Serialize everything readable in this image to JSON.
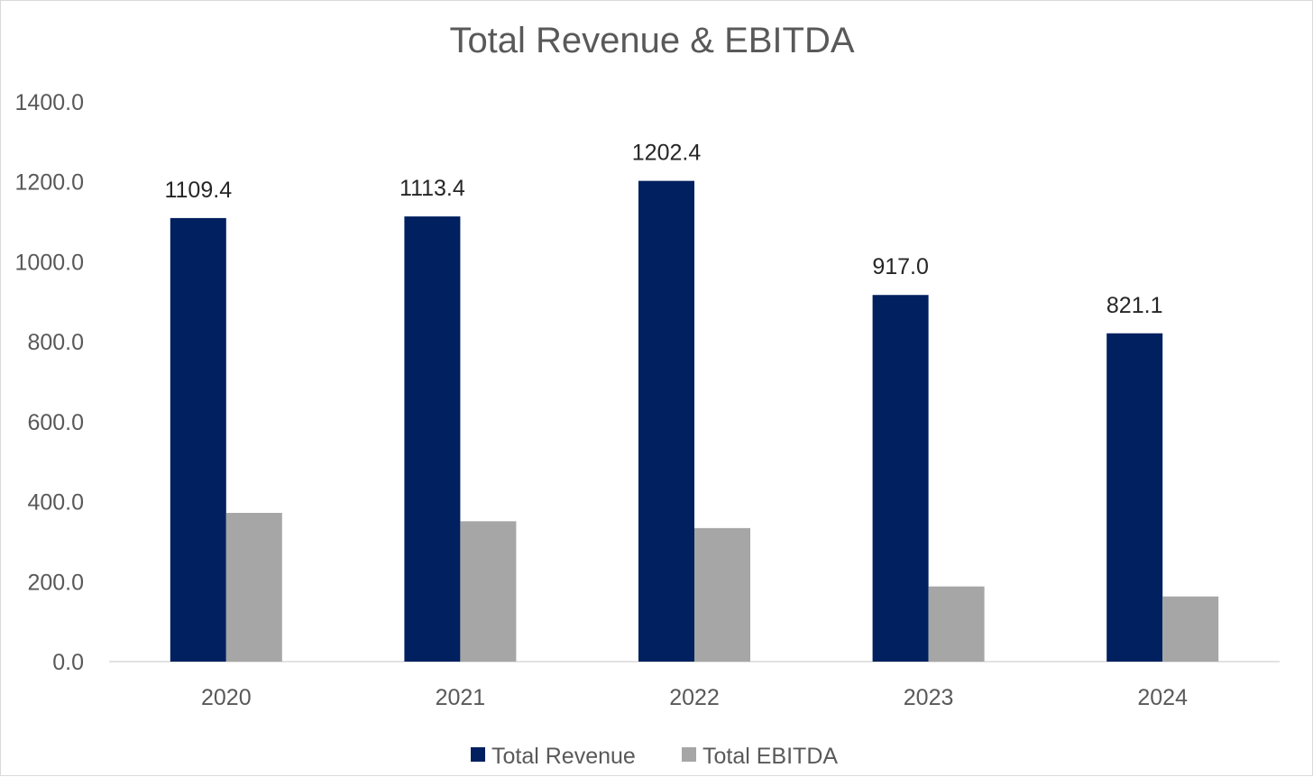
{
  "chart_data": {
    "type": "bar",
    "title": "Total Revenue & EBITDA",
    "categories": [
      "2020",
      "2021",
      "2022",
      "2023",
      "2024"
    ],
    "series": [
      {
        "name": "Total Revenue",
        "color": "#002060",
        "values": [
          1109.4,
          1113.4,
          1202.4,
          917.0,
          821.1
        ],
        "labels": [
          "1109.4",
          "1113.4",
          "1202.4",
          "917.0",
          "821.1"
        ],
        "show_labels": true
      },
      {
        "name": "Total EBITDA",
        "color": "#a6a6a6",
        "values": [
          372,
          351,
          334,
          188,
          163
        ],
        "show_labels": false
      }
    ],
    "ylim": [
      0,
      1400
    ],
    "yticks": [
      "0.0",
      "200.0",
      "400.0",
      "600.0",
      "800.0",
      "1000.0",
      "1200.0",
      "1400.0"
    ],
    "xlabel": "",
    "ylabel": "",
    "grid": false,
    "legend_position": "bottom",
    "axis_color": "#d9d9d9"
  }
}
